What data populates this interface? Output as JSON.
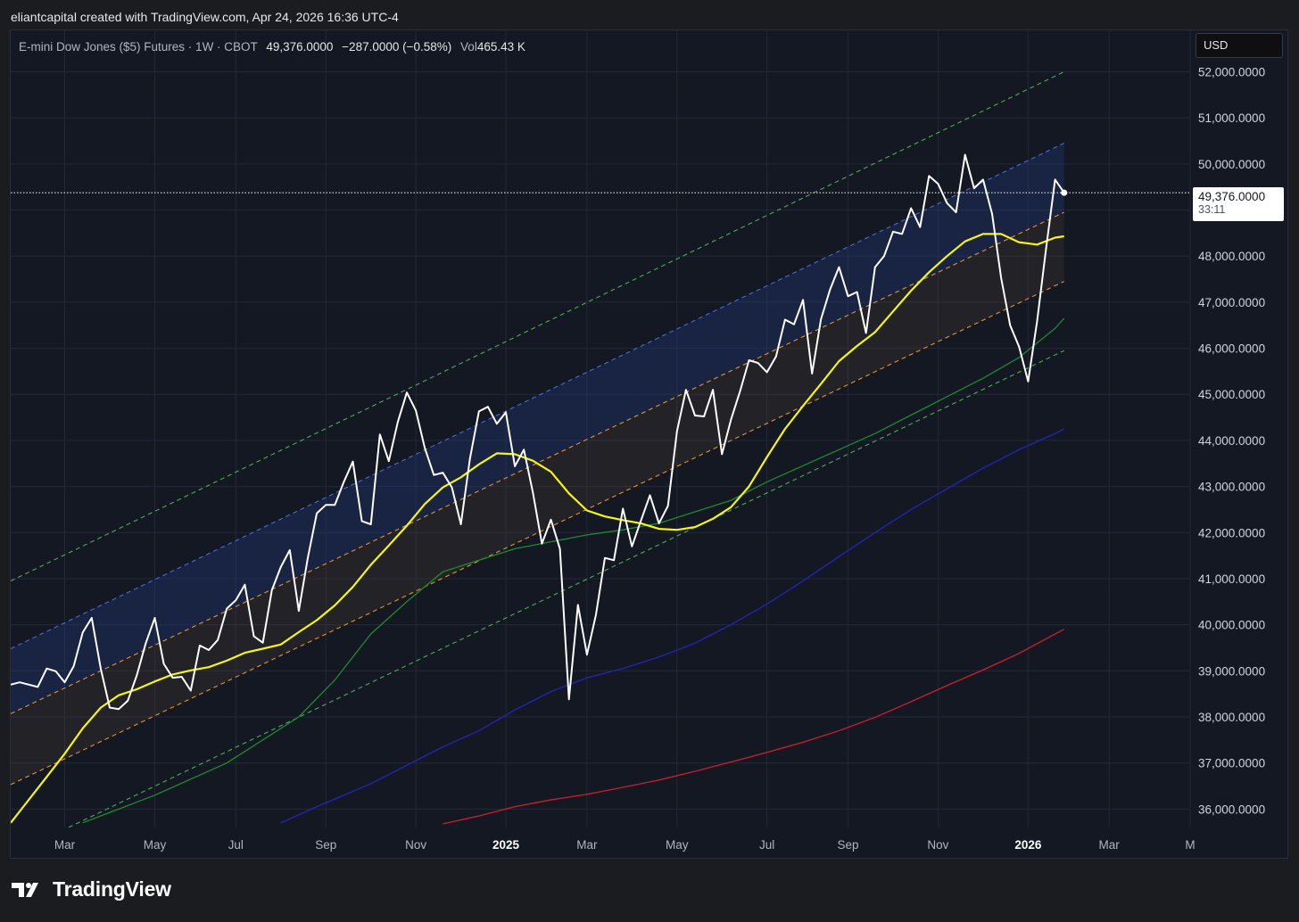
{
  "header": {
    "attribution": "eliantcapital created with TradingView.com, Apr 24, 2026 16:36 UTC-4"
  },
  "legend": {
    "symbol": "E-mini Dow Jones ($5) Futures · 1W · CBOT",
    "last": "49,376.0000",
    "change": "−287.0000 (−0.58%)",
    "vol_label": "Vol",
    "vol_value": "465.43 K"
  },
  "currency": "USD",
  "price_tag": {
    "price": "49,376.0000",
    "countdown": "33:11"
  },
  "brand": {
    "name": "TradingView",
    "logo_icon": "tradingview-logo-icon"
  },
  "colors": {
    "price": "#ffffff",
    "ma_short": "#f5f516",
    "ma_mid": "#1f8b2d",
    "ma_long": "#2323a8",
    "ma_200": "#c0202b",
    "channel_upper": "#4a6bd6",
    "channel_inner": "#e6942e",
    "channel_outer": "#4caf50"
  },
  "chart_data": {
    "type": "line",
    "yaxis": {
      "ticks": [
        36000,
        37000,
        38000,
        39000,
        40000,
        41000,
        42000,
        43000,
        44000,
        45000,
        46000,
        47000,
        48000,
        49000,
        50000,
        51000,
        52000
      ],
      "tick_labels": [
        "36,000.0000",
        "37,000.0000",
        "38,000.0000",
        "39,000.0000",
        "40,000.0000",
        "41,000.0000",
        "42,000.0000",
        "43,000.0000",
        "44,000.0000",
        "45,000.0000",
        "46,000.0000",
        "47,000.0000",
        "48,000.0000",
        "49,000.0000",
        "50,000.0000",
        "51,000.0000",
        "52,000.0000"
      ],
      "range": [
        35600,
        52900
      ]
    },
    "xaxis": {
      "range_week": [
        0,
        131
      ],
      "ticks": [
        {
          "label": "Mar",
          "week": 6,
          "bold": false
        },
        {
          "label": "May",
          "week": 16,
          "bold": false
        },
        {
          "label": "Jul",
          "week": 25,
          "bold": false
        },
        {
          "label": "Sep",
          "week": 35,
          "bold": false
        },
        {
          "label": "Nov",
          "week": 45,
          "bold": false
        },
        {
          "label": "2025",
          "week": 55,
          "bold": true
        },
        {
          "label": "Mar",
          "week": 64,
          "bold": false
        },
        {
          "label": "May",
          "week": 74,
          "bold": false
        },
        {
          "label": "Jul",
          "week": 84,
          "bold": false
        },
        {
          "label": "Sep",
          "week": 93,
          "bold": false
        },
        {
          "label": "Nov",
          "week": 103,
          "bold": false
        },
        {
          "label": "2026",
          "week": 113,
          "bold": true
        },
        {
          "label": "Mar",
          "week": 122,
          "bold": false
        },
        {
          "label": "M",
          "week": 131,
          "bold": false
        }
      ]
    },
    "current_price": 49376,
    "series": [
      {
        "key": "price",
        "points": [
          [
            0,
            38700
          ],
          [
            1,
            38750
          ],
          [
            3,
            38650
          ],
          [
            4,
            39050
          ],
          [
            5,
            38990
          ],
          [
            6,
            38750
          ],
          [
            7,
            39100
          ],
          [
            8,
            39830
          ],
          [
            9,
            40150
          ],
          [
            10,
            39050
          ],
          [
            11,
            38200
          ],
          [
            12,
            38170
          ],
          [
            13,
            38350
          ],
          [
            14,
            38900
          ],
          [
            15,
            39600
          ],
          [
            16,
            40150
          ],
          [
            17,
            39150
          ],
          [
            18,
            38850
          ],
          [
            19,
            38870
          ],
          [
            20,
            38570
          ],
          [
            21,
            39550
          ],
          [
            22,
            39450
          ],
          [
            23,
            39670
          ],
          [
            24,
            40350
          ],
          [
            25,
            40530
          ],
          [
            26,
            40870
          ],
          [
            27,
            39750
          ],
          [
            28,
            39610
          ],
          [
            29,
            40750
          ],
          [
            30,
            41250
          ],
          [
            31,
            41620
          ],
          [
            32,
            40300
          ],
          [
            33,
            41450
          ],
          [
            34,
            42420
          ],
          [
            35,
            42600
          ],
          [
            36,
            42600
          ],
          [
            37,
            43100
          ],
          [
            38,
            43540
          ],
          [
            39,
            42250
          ],
          [
            40,
            42180
          ],
          [
            41,
            44130
          ],
          [
            42,
            43550
          ],
          [
            43,
            44400
          ],
          [
            44,
            45040
          ],
          [
            45,
            44650
          ],
          [
            46,
            43830
          ],
          [
            47,
            43250
          ],
          [
            48,
            43300
          ],
          [
            49,
            42980
          ],
          [
            50,
            42180
          ],
          [
            51,
            43600
          ],
          [
            52,
            44630
          ],
          [
            53,
            44730
          ],
          [
            54,
            44360
          ],
          [
            55,
            44610
          ],
          [
            56,
            43440
          ],
          [
            57,
            43800
          ],
          [
            58,
            42870
          ],
          [
            59,
            41760
          ],
          [
            60,
            42280
          ],
          [
            61,
            41650
          ],
          [
            62,
            38380
          ],
          [
            63,
            40430
          ],
          [
            64,
            39350
          ],
          [
            65,
            40220
          ],
          [
            66,
            41450
          ],
          [
            67,
            41400
          ],
          [
            68,
            42520
          ],
          [
            69,
            41700
          ],
          [
            70,
            42260
          ],
          [
            71,
            42810
          ],
          [
            72,
            42200
          ],
          [
            73,
            42580
          ],
          [
            74,
            44200
          ],
          [
            75,
            45100
          ],
          [
            76,
            44540
          ],
          [
            77,
            44520
          ],
          [
            78,
            45100
          ],
          [
            79,
            43700
          ],
          [
            80,
            44450
          ],
          [
            81,
            45060
          ],
          [
            82,
            45740
          ],
          [
            83,
            45680
          ],
          [
            84,
            45480
          ],
          [
            85,
            45820
          ],
          [
            86,
            46620
          ],
          [
            87,
            46520
          ],
          [
            88,
            47050
          ],
          [
            89,
            45450
          ],
          [
            90,
            46630
          ],
          [
            91,
            47270
          ],
          [
            92,
            47760
          ],
          [
            93,
            47130
          ],
          [
            94,
            47220
          ],
          [
            95,
            46330
          ],
          [
            96,
            47760
          ],
          [
            97,
            48000
          ],
          [
            98,
            48530
          ],
          [
            99,
            48480
          ],
          [
            100,
            49040
          ],
          [
            101,
            48630
          ],
          [
            102,
            49740
          ],
          [
            103,
            49570
          ],
          [
            104,
            49150
          ],
          [
            105,
            48950
          ],
          [
            106,
            50200
          ],
          [
            107,
            49470
          ],
          [
            108,
            49660
          ],
          [
            109,
            48920
          ],
          [
            110,
            47530
          ],
          [
            111,
            46500
          ],
          [
            112,
            46030
          ],
          [
            113,
            45280
          ],
          [
            114,
            46580
          ],
          [
            115,
            48160
          ],
          [
            116,
            49660
          ],
          [
            117,
            49376
          ]
        ]
      },
      {
        "key": "ma_short",
        "points": [
          [
            0,
            35700
          ],
          [
            2,
            36200
          ],
          [
            4,
            36700
          ],
          [
            6,
            37200
          ],
          [
            8,
            37750
          ],
          [
            10,
            38200
          ],
          [
            12,
            38470
          ],
          [
            14,
            38600
          ],
          [
            16,
            38770
          ],
          [
            18,
            38920
          ],
          [
            20,
            39010
          ],
          [
            22,
            39080
          ],
          [
            24,
            39220
          ],
          [
            26,
            39390
          ],
          [
            28,
            39480
          ],
          [
            30,
            39570
          ],
          [
            32,
            39840
          ],
          [
            34,
            40100
          ],
          [
            36,
            40420
          ],
          [
            38,
            40820
          ],
          [
            40,
            41300
          ],
          [
            42,
            41720
          ],
          [
            44,
            42150
          ],
          [
            46,
            42620
          ],
          [
            48,
            42980
          ],
          [
            50,
            43200
          ],
          [
            52,
            43480
          ],
          [
            54,
            43720
          ],
          [
            56,
            43700
          ],
          [
            58,
            43560
          ],
          [
            60,
            43320
          ],
          [
            62,
            42850
          ],
          [
            64,
            42480
          ],
          [
            66,
            42350
          ],
          [
            68,
            42270
          ],
          [
            70,
            42200
          ],
          [
            72,
            42080
          ],
          [
            74,
            42060
          ],
          [
            76,
            42120
          ],
          [
            78,
            42300
          ],
          [
            80,
            42550
          ],
          [
            82,
            43000
          ],
          [
            84,
            43640
          ],
          [
            86,
            44250
          ],
          [
            88,
            44750
          ],
          [
            90,
            45230
          ],
          [
            92,
            45720
          ],
          [
            94,
            46050
          ],
          [
            96,
            46350
          ],
          [
            98,
            46800
          ],
          [
            100,
            47250
          ],
          [
            102,
            47650
          ],
          [
            104,
            48000
          ],
          [
            106,
            48320
          ],
          [
            108,
            48480
          ],
          [
            110,
            48480
          ],
          [
            112,
            48300
          ],
          [
            114,
            48250
          ],
          [
            116,
            48400
          ],
          [
            117,
            48430
          ]
        ]
      },
      {
        "key": "ma_mid",
        "points": [
          [
            8,
            35700
          ],
          [
            16,
            36300
          ],
          [
            24,
            37000
          ],
          [
            32,
            38000
          ],
          [
            36,
            38800
          ],
          [
            40,
            39800
          ],
          [
            44,
            40500
          ],
          [
            48,
            41150
          ],
          [
            52,
            41400
          ],
          [
            56,
            41650
          ],
          [
            60,
            41800
          ],
          [
            64,
            41950
          ],
          [
            68,
            42060
          ],
          [
            72,
            42200
          ],
          [
            76,
            42450
          ],
          [
            80,
            42700
          ],
          [
            84,
            43100
          ],
          [
            88,
            43450
          ],
          [
            92,
            43800
          ],
          [
            96,
            44150
          ],
          [
            100,
            44550
          ],
          [
            104,
            44950
          ],
          [
            108,
            45350
          ],
          [
            112,
            45800
          ],
          [
            116,
            46430
          ],
          [
            117,
            46650
          ]
        ]
      },
      {
        "key": "ma_long",
        "points": [
          [
            30,
            35700
          ],
          [
            34,
            36050
          ],
          [
            40,
            36550
          ],
          [
            44,
            36950
          ],
          [
            48,
            37350
          ],
          [
            52,
            37700
          ],
          [
            56,
            38150
          ],
          [
            60,
            38550
          ],
          [
            64,
            38850
          ],
          [
            68,
            39050
          ],
          [
            72,
            39300
          ],
          [
            76,
            39600
          ],
          [
            80,
            40000
          ],
          [
            84,
            40450
          ],
          [
            88,
            40950
          ],
          [
            92,
            41480
          ],
          [
            96,
            42000
          ],
          [
            100,
            42500
          ],
          [
            104,
            42950
          ],
          [
            108,
            43400
          ],
          [
            112,
            43800
          ],
          [
            116,
            44150
          ],
          [
            117,
            44250
          ]
        ]
      },
      {
        "key": "ma_200",
        "points": [
          [
            48,
            35680
          ],
          [
            52,
            35850
          ],
          [
            56,
            36050
          ],
          [
            60,
            36200
          ],
          [
            64,
            36320
          ],
          [
            68,
            36470
          ],
          [
            72,
            36630
          ],
          [
            76,
            36820
          ],
          [
            80,
            37020
          ],
          [
            84,
            37230
          ],
          [
            88,
            37450
          ],
          [
            92,
            37700
          ],
          [
            96,
            37990
          ],
          [
            100,
            38330
          ],
          [
            104,
            38680
          ],
          [
            108,
            39020
          ],
          [
            112,
            39380
          ],
          [
            116,
            39800
          ],
          [
            117,
            39900
          ]
        ]
      }
    ],
    "channel": {
      "upper_outer": [
        [
          0,
          40950
        ],
        [
          117,
          52000
        ]
      ],
      "upper": [
        [
          0,
          39480
        ],
        [
          117,
          50450
        ]
      ],
      "mid": [
        [
          0,
          38070
        ],
        [
          117,
          48950
        ]
      ],
      "lower": [
        [
          0,
          36530
        ],
        [
          117,
          47450
        ]
      ],
      "lower_outer": [
        [
          0,
          35000
        ],
        [
          117,
          45950
        ]
      ]
    }
  }
}
